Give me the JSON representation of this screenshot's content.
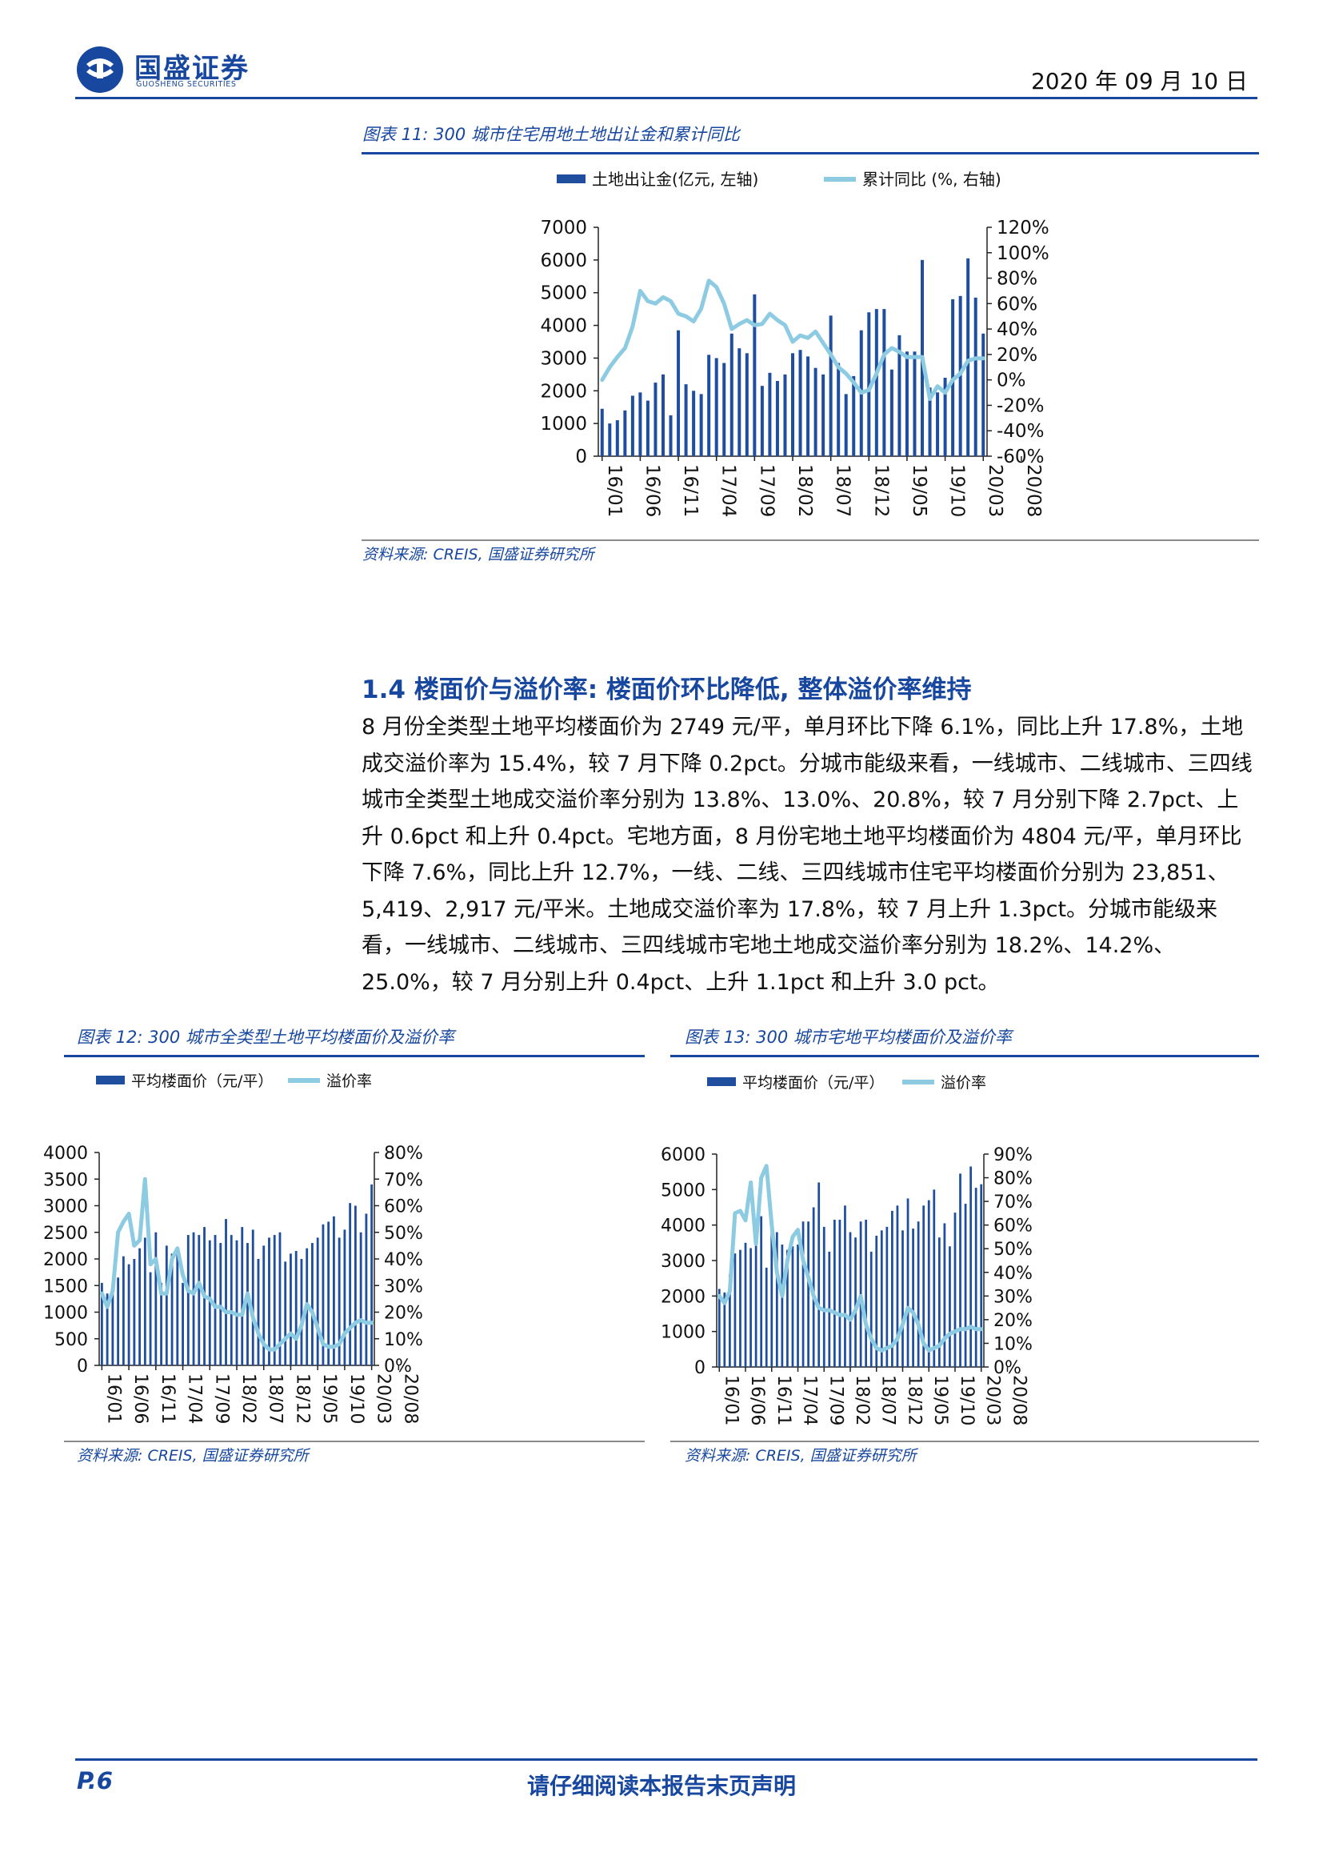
{
  "header": {
    "logo_cn": "国盛证券",
    "logo_en": "GUOSHENG SECURITIES",
    "date": "2020 年 09 月 10 日"
  },
  "colors": {
    "brand": "#17479e",
    "bar": "#1f4e9e",
    "line": "#8ccbe2"
  },
  "figure11": {
    "title": "图表 11: 300 城市住宅用地土地出让金和累计同比",
    "source": "资料来源: CREIS, 国盛证券研究所"
  },
  "section": {
    "heading": "1.4 楼面价与溢价率: 楼面价环比降低, 整体溢价率维持",
    "paragraph": "8 月份全类型土地平均楼面价为 2749 元/平，单月环比下降 6.1%，同比上升 17.8%，土地成交溢价率为 15.4%，较 7 月下降 0.2pct。分城市能级来看，一线城市、二线城市、三四线城市全类型土地成交溢价率分别为 13.8%、13.0%、20.8%，较 7 月分别下降 2.7pct、上升 0.6pct 和上升 0.4pct。宅地方面，8 月份宅地土地平均楼面价为 4804 元/平，单月环比下降 7.6%，同比上升 12.7%，一线、二线、三四线城市住宅平均楼面价分别为 23,851、5,419、2,917 元/平米。土地成交溢价率为 17.8%，较 7 月上升 1.3pct。分城市能级来看，一线城市、二线城市、三四线城市宅地土地成交溢价率分别为 18.2%、14.2%、25.0%，较 7 月分别上升 0.4pct、上升 1.1pct 和上升 3.0 pct。"
  },
  "figure12": {
    "title": "图表 12: 300 城市全类型土地平均楼面价及溢价率",
    "source": "资料来源: CREIS, 国盛证券研究所"
  },
  "figure13": {
    "title": "图表 13: 300 城市宅地平均楼面价及溢价率",
    "source": "资料来源: CREIS, 国盛证券研究所"
  },
  "footer": {
    "page": "P.6",
    "note": "请仔细阅读本报告末页声明"
  },
  "chart_data": [
    {
      "id": "c11",
      "type": "bar+line",
      "legend": [
        "土地出让金(亿元, 左轴)",
        "累计同比 (%, 右轴)"
      ],
      "x_ticks": [
        "16/01",
        "16/06",
        "16/11",
        "17/04",
        "17/09",
        "18/02",
        "18/07",
        "18/12",
        "19/05",
        "19/10",
        "20/03",
        "20/08"
      ],
      "y_left": {
        "min": 0,
        "max": 7000,
        "step": 1000,
        "ticks": [
          "0",
          "1000",
          "2000",
          "3000",
          "4000",
          "5000",
          "6000",
          "7000"
        ]
      },
      "y_right": {
        "min": -60,
        "max": 120,
        "ticks": [
          "-60%",
          "-40%",
          "-20%",
          "0%",
          "20%",
          "40%",
          "60%",
          "80%",
          "100%",
          "120%"
        ]
      },
      "series": [
        {
          "name": "土地出让金(亿元, 左轴)",
          "axis": "left",
          "type": "bar",
          "values": [
            1450,
            1000,
            1100,
            1400,
            1850,
            1950,
            1700,
            2250,
            2500,
            1250,
            3850,
            2200,
            2000,
            1900,
            3100,
            3000,
            2850,
            3750,
            3300,
            3150,
            4950,
            2150,
            2550,
            2300,
            2500,
            3150,
            3250,
            3050,
            2700,
            2500,
            4300,
            2850,
            1900,
            2450,
            3850,
            4400,
            4500,
            4500,
            2650,
            3700,
            3200,
            3200,
            6000,
            2100,
            1950,
            2400,
            4800,
            4900,
            6050,
            4850,
            3750
          ]
        },
        {
          "name": "累计同比 (%, 右轴)",
          "axis": "right",
          "type": "line",
          "values": [
            0,
            10,
            18,
            25,
            42,
            70,
            62,
            60,
            65,
            62,
            52,
            50,
            46,
            56,
            78,
            73,
            60,
            40,
            44,
            47,
            43,
            44,
            52,
            47,
            43,
            30,
            35,
            33,
            38,
            29,
            20,
            10,
            5,
            -2,
            -10,
            -8,
            5,
            20,
            25,
            22,
            18,
            18,
            18,
            -15,
            -5,
            -10,
            0,
            5,
            15,
            17,
            17
          ]
        }
      ]
    },
    {
      "id": "c12",
      "type": "bar+line",
      "legend": [
        "平均楼面价（元/平）",
        "溢价率"
      ],
      "x_ticks": [
        "16/01",
        "16/06",
        "16/11",
        "17/04",
        "17/09",
        "18/02",
        "18/07",
        "18/12",
        "19/05",
        "19/10",
        "20/03",
        "20/08"
      ],
      "y_left": {
        "min": 0,
        "max": 4000,
        "step": 500,
        "ticks": [
          "0",
          "500",
          "1000",
          "1500",
          "2000",
          "2500",
          "3000",
          "3500",
          "4000"
        ]
      },
      "y_right": {
        "min": 0,
        "max": 80,
        "ticks": [
          "0%",
          "10%",
          "20%",
          "30%",
          "40%",
          "50%",
          "60%",
          "70%",
          "80%"
        ]
      },
      "series": [
        {
          "name": "平均楼面价（元/平）",
          "axis": "left",
          "type": "bar",
          "values": [
            1550,
            1350,
            1450,
            1650,
            2050,
            1900,
            2000,
            2200,
            2400,
            1750,
            2500,
            1550,
            2250,
            2100,
            2150,
            1550,
            2450,
            2500,
            2450,
            2600,
            2350,
            2450,
            2300,
            2750,
            2450,
            2350,
            2600,
            2300,
            2550,
            2000,
            2250,
            2400,
            2450,
            2500,
            1950,
            2100,
            2150,
            2000,
            2200,
            2300,
            2400,
            2650,
            2700,
            2800,
            2400,
            2550,
            3050,
            3000,
            2500,
            2850,
            3400
          ]
        },
        {
          "name": "溢价率",
          "axis": "right",
          "type": "line",
          "values": [
            27,
            22,
            28,
            50,
            54,
            57,
            45,
            47,
            70,
            38,
            40,
            27,
            27,
            40,
            44,
            34,
            28,
            27,
            31,
            26,
            25,
            22,
            22,
            20,
            20,
            19,
            19,
            27,
            18,
            12,
            8,
            6,
            6,
            8,
            10,
            12,
            10,
            15,
            23,
            20,
            14,
            8,
            7,
            7,
            8,
            12,
            14,
            16,
            17,
            16,
            16
          ]
        }
      ]
    },
    {
      "id": "c13",
      "type": "bar+line",
      "legend": [
        "平均楼面价（元/平）",
        "溢价率"
      ],
      "x_ticks": [
        "16/01",
        "16/06",
        "16/11",
        "17/04",
        "17/09",
        "18/02",
        "18/07",
        "18/12",
        "19/05",
        "19/10",
        "20/03",
        "20/08"
      ],
      "y_left": {
        "min": 0,
        "max": 6000,
        "step": 1000,
        "ticks": [
          "0",
          "1000",
          "2000",
          "3000",
          "4000",
          "5000",
          "6000"
        ]
      },
      "y_right": {
        "min": 0,
        "max": 90,
        "ticks": [
          "0%",
          "10%",
          "20%",
          "30%",
          "40%",
          "50%",
          "60%",
          "70%",
          "80%",
          "90%"
        ]
      },
      "series": [
        {
          "name": "平均楼面价（元/平）",
          "axis": "left",
          "type": "bar",
          "values": [
            2200,
            2100,
            2600,
            3200,
            3300,
            3500,
            3350,
            3800,
            4250,
            2800,
            3950,
            3800,
            3450,
            3300,
            3400,
            3450,
            4100,
            4100,
            4500,
            5200,
            3950,
            3250,
            4150,
            4150,
            4550,
            3800,
            3650,
            4100,
            4150,
            3250,
            3700,
            3850,
            3950,
            4400,
            4550,
            3850,
            4750,
            3900,
            4100,
            4550,
            4700,
            5000,
            3650,
            4050,
            3400,
            4350,
            5450,
            4600,
            5650,
            5050,
            5150
          ]
        },
        {
          "name": "溢价率",
          "axis": "right",
          "type": "line",
          "values": [
            30,
            27,
            32,
            65,
            66,
            62,
            78,
            52,
            80,
            85,
            60,
            40,
            30,
            45,
            55,
            58,
            45,
            38,
            30,
            25,
            24,
            24,
            23,
            22,
            22,
            20,
            24,
            30,
            18,
            12,
            8,
            7,
            8,
            9,
            12,
            18,
            25,
            23,
            18,
            10,
            7,
            8,
            9,
            12,
            14,
            15,
            16,
            16,
            17,
            16,
            16
          ]
        }
      ]
    }
  ]
}
